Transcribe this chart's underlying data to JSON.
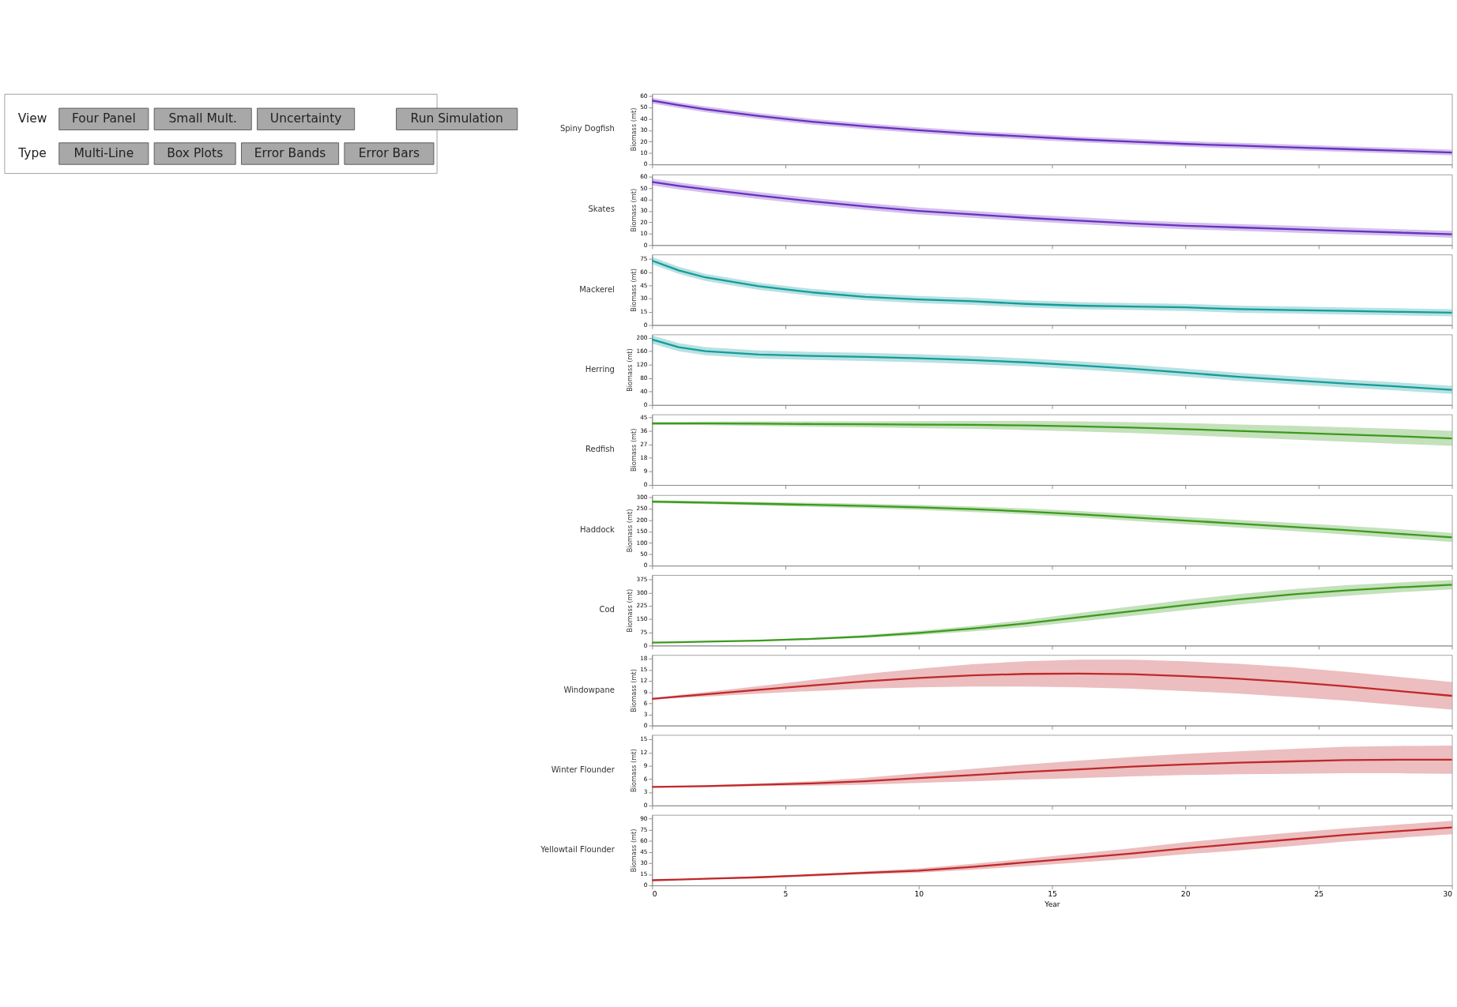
{
  "chart_data": [
    {
      "type": "other",
      "annotations": [
        "View",
        "Four Panel",
        "Small Mult.",
        "Uncertainty",
        "Run Simulation",
        "Type",
        "Multi-Line",
        "Box Plots",
        "Error Bands",
        "Error Bars"
      ]
    },
    {
      "type": "line",
      "title": "Spiny Dogfish",
      "ylabel": "Biomass (mt)",
      "xlim": [
        0,
        30
      ],
      "xticks": [
        0,
        5,
        10,
        15,
        20,
        25,
        30
      ],
      "ylim": [
        0,
        62
      ],
      "yticks": [
        0,
        10,
        20,
        30,
        40,
        50,
        60
      ],
      "tick_labels": "y",
      "x": [
        0,
        1,
        2,
        4,
        6,
        8,
        10,
        12,
        14,
        16,
        18,
        20,
        22,
        24,
        26,
        28,
        30
      ],
      "series": [
        {
          "color": "#6b2fc0",
          "values": [
            56,
            52,
            48.5,
            42.5,
            37.5,
            33.5,
            30,
            27,
            24.5,
            22,
            20,
            18,
            16.5,
            15,
            13.5,
            12,
            10.5
          ],
          "lower": [
            53.5,
            49.5,
            46,
            40,
            35,
            31,
            27.5,
            24.5,
            22,
            19.5,
            17.5,
            15.5,
            14,
            12.5,
            11,
            9.5,
            8
          ],
          "upper": [
            58.5,
            54.5,
            51,
            45,
            40,
            36,
            32.5,
            29.5,
            27,
            24.5,
            22.5,
            20.5,
            19,
            17.5,
            16,
            14.5,
            13
          ]
        }
      ]
    },
    {
      "type": "line",
      "title": "Skates",
      "ylabel": "Biomass (mt)",
      "xlim": [
        0,
        30
      ],
      "xticks": [
        0,
        5,
        10,
        15,
        20,
        25,
        30
      ],
      "ylim": [
        0,
        62
      ],
      "yticks": [
        0,
        10,
        20,
        30,
        40,
        50,
        60
      ],
      "tick_labels": "y",
      "x": [
        0,
        1,
        2,
        4,
        6,
        8,
        10,
        12,
        14,
        16,
        18,
        20,
        22,
        24,
        26,
        28,
        30
      ],
      "series": [
        {
          "color": "#6b2fc0",
          "values": [
            55.5,
            52,
            49,
            43.5,
            38.5,
            34,
            30,
            27,
            24,
            21.5,
            19,
            17,
            15.5,
            14,
            12.5,
            11,
            9.5
          ],
          "lower": [
            52.5,
            49,
            46,
            40.5,
            35.5,
            31,
            27,
            24,
            21,
            18.5,
            16,
            14,
            12.5,
            11,
            9.5,
            8,
            6.5
          ],
          "upper": [
            58.5,
            55,
            52,
            46.5,
            41.5,
            37,
            33,
            30,
            27,
            24.5,
            22,
            20,
            18.5,
            17,
            15.5,
            14,
            12.5
          ]
        }
      ]
    },
    {
      "type": "line",
      "title": "Mackerel",
      "ylabel": "Biomass (mt)",
      "xlim": [
        0,
        30
      ],
      "xticks": [
        0,
        5,
        10,
        15,
        20,
        25,
        30
      ],
      "ylim": [
        0,
        80
      ],
      "yticks": [
        0,
        15,
        30,
        45,
        60,
        75
      ],
      "tick_labels": "y",
      "x": [
        0,
        1,
        2,
        4,
        6,
        8,
        10,
        12,
        14,
        16,
        18,
        20,
        22,
        24,
        26,
        28,
        30
      ],
      "series": [
        {
          "color": "#139c9c",
          "values": [
            73,
            62,
            54,
            44,
            37,
            32,
            29,
            27,
            24,
            22,
            21,
            20,
            18,
            17,
            16,
            15,
            14
          ],
          "lower": [
            69,
            58,
            50,
            40,
            33,
            28,
            25,
            23,
            20,
            18,
            17,
            16,
            14,
            13,
            12,
            11,
            10
          ],
          "upper": [
            77,
            66,
            58,
            48,
            41,
            36,
            33,
            31,
            28,
            26,
            25,
            24,
            22,
            21,
            20,
            19,
            18
          ]
        }
      ]
    },
    {
      "type": "line",
      "title": "Herring",
      "ylabel": "Biomass (mt)",
      "xlim": [
        0,
        30
      ],
      "xticks": [
        0,
        5,
        10,
        15,
        20,
        25,
        30
      ],
      "ylim": [
        0,
        210
      ],
      "yticks": [
        0,
        40,
        80,
        120,
        160,
        200
      ],
      "tick_labels": "y",
      "x": [
        0,
        1,
        2,
        4,
        6,
        8,
        10,
        12,
        14,
        16,
        18,
        20,
        22,
        24,
        26,
        28,
        30
      ],
      "series": [
        {
          "color": "#139c9c",
          "values": [
            195,
            172,
            160,
            150,
            146,
            143,
            139,
            134,
            127,
            118,
            108,
            96,
            84,
            74,
            64,
            55,
            45
          ],
          "lower": [
            183,
            160,
            148,
            138,
            134,
            131,
            127,
            122,
            115,
            106,
            96,
            84,
            72,
            62,
            52,
            43,
            33
          ],
          "upper": [
            207,
            184,
            172,
            162,
            158,
            155,
            151,
            146,
            139,
            130,
            120,
            108,
            96,
            86,
            76,
            67,
            57
          ]
        }
      ]
    },
    {
      "type": "line",
      "title": "Redfish",
      "ylabel": "Biomass (mt)",
      "xlim": [
        0,
        30
      ],
      "xticks": [
        0,
        5,
        10,
        15,
        20,
        25,
        30
      ],
      "ylim": [
        0,
        47
      ],
      "yticks": [
        0,
        9,
        18,
        27,
        36,
        45
      ],
      "tick_labels": "y",
      "x": [
        0,
        1,
        2,
        4,
        6,
        8,
        10,
        12,
        14,
        16,
        18,
        20,
        22,
        24,
        26,
        28,
        30
      ],
      "series": [
        {
          "color": "#3c9a1e",
          "values": [
            41,
            41,
            41,
            40.8,
            40.6,
            40.4,
            40.2,
            40,
            39.6,
            39,
            38.2,
            37.2,
            36,
            34.8,
            33.6,
            32.4,
            31
          ],
          "lower": [
            40,
            40,
            39.8,
            39.3,
            38.8,
            38.4,
            37.9,
            37.4,
            36.6,
            35.7,
            34.6,
            33.2,
            31.7,
            30.2,
            28.8,
            27.4,
            26
          ],
          "upper": [
            42,
            42,
            42.2,
            42.3,
            42.4,
            42.4,
            42.5,
            42.6,
            42.6,
            42.3,
            41.8,
            41.2,
            40.3,
            39.4,
            38.4,
            37.4,
            36
          ]
        }
      ]
    },
    {
      "type": "line",
      "title": "Haddock",
      "ylabel": "Biomass (mt)",
      "xlim": [
        0,
        30
      ],
      "xticks": [
        0,
        5,
        10,
        15,
        20,
        25,
        30
      ],
      "ylim": [
        0,
        310
      ],
      "yticks": [
        0,
        50,
        100,
        150,
        200,
        250,
        300
      ],
      "tick_labels": "y",
      "x": [
        0,
        1,
        2,
        4,
        6,
        8,
        10,
        12,
        14,
        16,
        18,
        20,
        22,
        24,
        26,
        28,
        30
      ],
      "series": [
        {
          "color": "#3c9a1e",
          "values": [
            281,
            279,
            277,
            272,
            267,
            262,
            256,
            248,
            238,
            226,
            212,
            198,
            184,
            170,
            156,
            140,
            124
          ],
          "lower": [
            275,
            273,
            270,
            264,
            258,
            252,
            245,
            236,
            225,
            212,
            197,
            182,
            167,
            152,
            137,
            120,
            104
          ],
          "upper": [
            287,
            285,
            284,
            280,
            276,
            272,
            267,
            260,
            251,
            240,
            227,
            214,
            201,
            188,
            175,
            160,
            144
          ]
        }
      ]
    },
    {
      "type": "line",
      "title": "Cod",
      "ylabel": "Biomass (mt)",
      "xlim": [
        0,
        30
      ],
      "xticks": [
        0,
        5,
        10,
        15,
        20,
        25,
        30
      ],
      "ylim": [
        0,
        400
      ],
      "yticks": [
        0,
        75,
        150,
        225,
        300,
        375
      ],
      "tick_labels": "y",
      "x": [
        0,
        1,
        2,
        4,
        6,
        8,
        10,
        12,
        14,
        16,
        18,
        20,
        22,
        24,
        26,
        28,
        30
      ],
      "series": [
        {
          "color": "#3c9a1e",
          "values": [
            17,
            19,
            22,
            28,
            38,
            52,
            72,
            96,
            125,
            160,
            195,
            230,
            262,
            290,
            312,
            330,
            345
          ],
          "lower": [
            16,
            18,
            20,
            25,
            33,
            44,
            60,
            80,
            105,
            136,
            168,
            201,
            232,
            260,
            282,
            302,
            319
          ],
          "upper": [
            18,
            20,
            24,
            31,
            43,
            60,
            84,
            112,
            145,
            184,
            222,
            259,
            292,
            320,
            342,
            358,
            371
          ]
        }
      ]
    },
    {
      "type": "line",
      "title": "Windowpane",
      "ylabel": "Biomass (mt)",
      "xlim": [
        0,
        30
      ],
      "xticks": [
        0,
        5,
        10,
        15,
        20,
        25,
        30
      ],
      "ylim": [
        0,
        19
      ],
      "yticks": [
        0,
        3,
        6,
        9,
        12,
        15,
        18
      ],
      "tick_labels": "y",
      "x": [
        0,
        1,
        2,
        4,
        6,
        8,
        10,
        12,
        14,
        16,
        18,
        20,
        22,
        24,
        26,
        28,
        30
      ],
      "series": [
        {
          "color": "#c0282a",
          "values": [
            7.2,
            7.8,
            8.4,
            9.6,
            10.8,
            11.9,
            12.8,
            13.5,
            13.9,
            14.0,
            13.8,
            13.3,
            12.6,
            11.7,
            10.6,
            9.3,
            8.0
          ],
          "lower": [
            7.0,
            7.4,
            7.8,
            8.6,
            9.3,
            9.9,
            10.3,
            10.5,
            10.5,
            10.3,
            9.9,
            9.3,
            8.6,
            7.7,
            6.7,
            5.5,
            4.3
          ],
          "upper": [
            7.4,
            8.2,
            9.0,
            10.6,
            12.3,
            13.9,
            15.3,
            16.5,
            17.3,
            17.7,
            17.7,
            17.3,
            16.6,
            15.7,
            14.5,
            13.1,
            11.7
          ]
        }
      ]
    },
    {
      "type": "line",
      "title": "Winter Flounder",
      "ylabel": "Biomass (mt)",
      "xlim": [
        0,
        30
      ],
      "xticks": [
        0,
        5,
        10,
        15,
        20,
        25,
        30
      ],
      "ylim": [
        0,
        16
      ],
      "yticks": [
        0,
        3,
        6,
        9,
        12,
        15
      ],
      "tick_labels": "y",
      "x": [
        0,
        1,
        2,
        4,
        6,
        8,
        10,
        12,
        14,
        16,
        18,
        20,
        22,
        24,
        26,
        28,
        30
      ],
      "series": [
        {
          "color": "#c0282a",
          "values": [
            4.2,
            4.3,
            4.4,
            4.7,
            5.0,
            5.5,
            6.2,
            6.9,
            7.6,
            8.2,
            8.8,
            9.3,
            9.7,
            10.0,
            10.3,
            10.4,
            10.4
          ],
          "lower": [
            4.1,
            4.2,
            4.2,
            4.4,
            4.5,
            4.7,
            5.1,
            5.5,
            5.9,
            6.2,
            6.6,
            6.9,
            7.1,
            7.2,
            7.3,
            7.3,
            7.2
          ],
          "upper": [
            4.3,
            4.4,
            4.6,
            5.0,
            5.5,
            6.3,
            7.3,
            8.3,
            9.3,
            10.2,
            11.0,
            11.7,
            12.3,
            12.8,
            13.3,
            13.5,
            13.6
          ]
        }
      ]
    },
    {
      "type": "line",
      "title": "Yellowtail Flounder",
      "ylabel": "Biomass (mt)",
      "xlabel": "Year",
      "xlim": [
        0,
        30
      ],
      "xticks": [
        0,
        5,
        10,
        15,
        20,
        25,
        30
      ],
      "ylim": [
        0,
        95
      ],
      "yticks": [
        0,
        15,
        30,
        45,
        60,
        75,
        90
      ],
      "x": [
        0,
        1,
        2,
        4,
        6,
        8,
        10,
        12,
        14,
        16,
        18,
        20,
        22,
        24,
        26,
        28,
        30
      ],
      "series": [
        {
          "color": "#c0282a",
          "values": [
            7,
            8,
            9,
            11,
            14,
            17,
            20,
            25,
            31,
            37,
            43,
            50,
            56,
            62,
            68,
            73,
            78
          ],
          "lower": [
            7,
            8,
            9,
            10,
            12,
            15,
            17,
            21,
            26,
            31,
            36,
            42,
            47,
            53,
            59,
            64,
            69
          ],
          "upper": [
            7,
            8,
            10,
            12,
            15,
            19,
            23,
            29,
            36,
            43,
            50,
            58,
            65,
            71,
            77,
            82,
            87
          ]
        }
      ]
    }
  ]
}
